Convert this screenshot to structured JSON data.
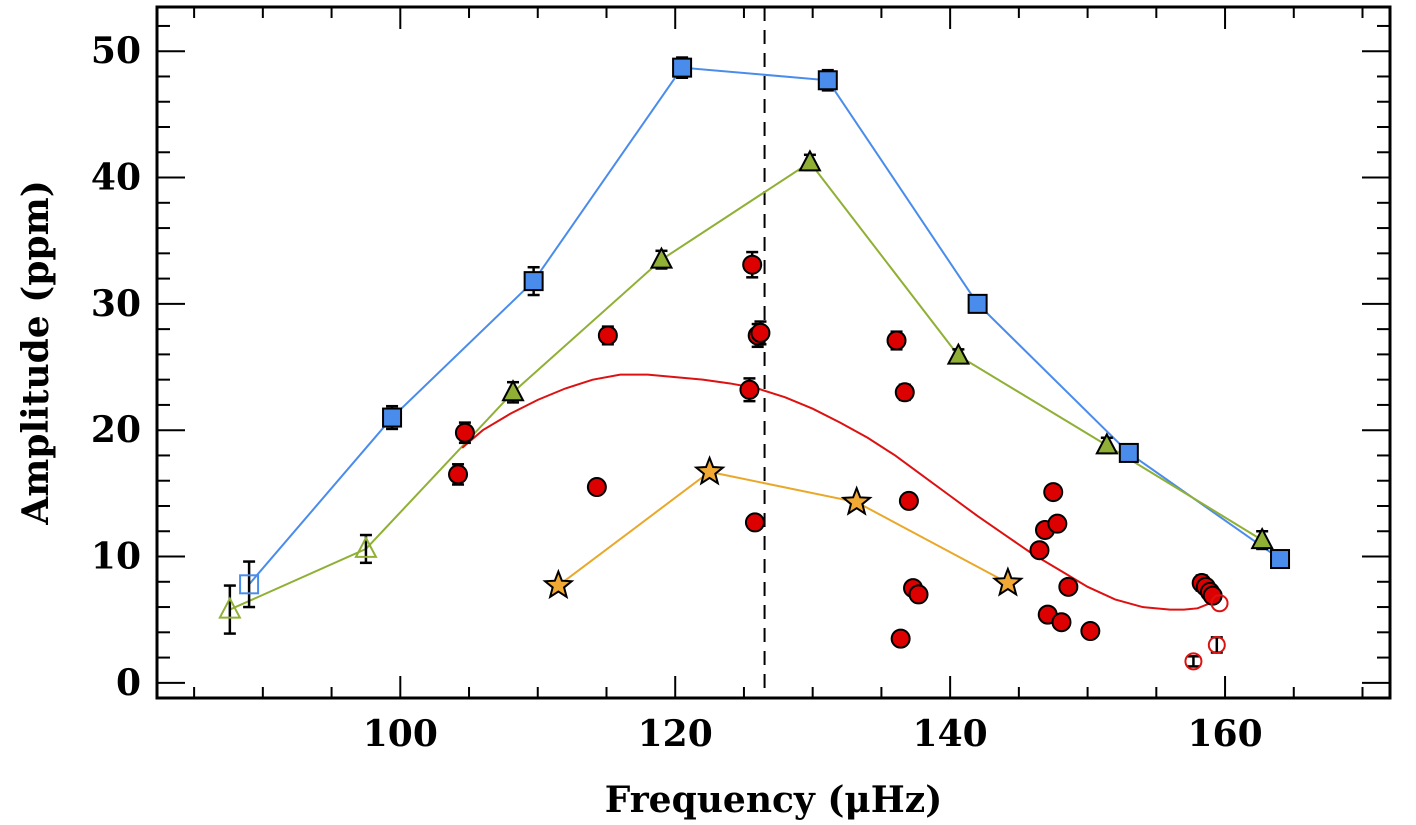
{
  "chart_data": {
    "type": "scatter",
    "title": "",
    "xlabel": "Frequency (μHz)",
    "ylabel": "Amplitude (ppm)",
    "xlim": [
      82.3,
      172
    ],
    "ylim": [
      -1.2,
      53.5
    ],
    "x_ticks": [
      100,
      120,
      140,
      160
    ],
    "y_ticks": [
      0,
      10,
      20,
      30,
      40,
      50
    ],
    "x_tick_labels": [
      "100",
      "120",
      "140",
      "160"
    ],
    "y_tick_labels": [
      "0",
      "10",
      "20",
      "30",
      "40",
      "50"
    ],
    "vline_x": 126.5,
    "colors": {
      "blue_line": "#4a8cec",
      "blue_fill": "#4a8cec",
      "green_line": "#8fb035",
      "green_fill": "#8fb035",
      "orange_line": "#eaa82a",
      "orange_fill": "#f2a933",
      "red_line": "#dd1111",
      "red_fill": "#dd0000"
    },
    "series": [
      {
        "name": "blue squares",
        "marker": "square",
        "connected": true,
        "points": [
          {
            "x": 89.0,
            "y": 7.8,
            "err": 1.8,
            "open": true
          },
          {
            "x": 99.4,
            "y": 21.0,
            "err": 0.9
          },
          {
            "x": 109.7,
            "y": 31.8,
            "err": 1.1
          },
          {
            "x": 120.5,
            "y": 48.7,
            "err": 0.8
          },
          {
            "x": 131.1,
            "y": 47.7,
            "err": 0.8
          },
          {
            "x": 142.0,
            "y": 30.0,
            "err": 0.0
          },
          {
            "x": 153.0,
            "y": 18.2,
            "err": 0.3
          },
          {
            "x": 164.0,
            "y": 9.8,
            "err": 0.6
          }
        ]
      },
      {
        "name": "green triangles",
        "marker": "triangle",
        "connected": true,
        "points": [
          {
            "x": 87.6,
            "y": 5.8,
            "err": 1.9,
            "open": true
          },
          {
            "x": 97.5,
            "y": 10.6,
            "err": 1.1,
            "open": true
          },
          {
            "x": 108.2,
            "y": 23.0,
            "err": 0.8
          },
          {
            "x": 119.0,
            "y": 33.5,
            "err": 0.7
          },
          {
            "x": 129.8,
            "y": 41.2,
            "err": 0.6
          },
          {
            "x": 140.6,
            "y": 25.9,
            "err": 0.5
          },
          {
            "x": 151.4,
            "y": 18.8,
            "err": 0.6
          },
          {
            "x": 162.7,
            "y": 11.3,
            "err": 0.7
          }
        ]
      },
      {
        "name": "orange stars",
        "marker": "star",
        "connected": true,
        "points": [
          {
            "x": 111.5,
            "y": 7.7
          },
          {
            "x": 122.5,
            "y": 16.7
          },
          {
            "x": 133.2,
            "y": 14.3
          },
          {
            "x": 144.2,
            "y": 7.9
          }
        ]
      },
      {
        "name": "red circles",
        "marker": "circle",
        "connected": false,
        "points": [
          {
            "x": 104.2,
            "y": 16.5,
            "err": 0.8
          },
          {
            "x": 104.7,
            "y": 19.8,
            "err": 0.8
          },
          {
            "x": 114.3,
            "y": 15.5
          },
          {
            "x": 115.1,
            "y": 27.5,
            "err": 0.7
          },
          {
            "x": 125.4,
            "y": 23.2,
            "err": 0.9
          },
          {
            "x": 125.6,
            "y": 33.1,
            "err": 1.0
          },
          {
            "x": 125.8,
            "y": 12.7,
            "err": 0.5
          },
          {
            "x": 126.0,
            "y": 27.5,
            "err": 0.9
          },
          {
            "x": 126.2,
            "y": 27.7,
            "err": 0.9
          },
          {
            "x": 136.1,
            "y": 27.1,
            "err": 0.7
          },
          {
            "x": 136.7,
            "y": 23.0,
            "err": 0.6
          },
          {
            "x": 137.0,
            "y": 14.4,
            "err": 0.4
          },
          {
            "x": 136.4,
            "y": 3.5
          },
          {
            "x": 137.3,
            "y": 7.5
          },
          {
            "x": 137.7,
            "y": 7.0
          },
          {
            "x": 146.5,
            "y": 10.5
          },
          {
            "x": 146.9,
            "y": 12.1,
            "err": 0.5
          },
          {
            "x": 147.1,
            "y": 5.4
          },
          {
            "x": 147.5,
            "y": 15.1,
            "err": 0.4
          },
          {
            "x": 147.8,
            "y": 12.6,
            "err": 0.4
          },
          {
            "x": 148.1,
            "y": 4.8
          },
          {
            "x": 148.6,
            "y": 7.6
          },
          {
            "x": 150.2,
            "y": 4.1
          },
          {
            "x": 158.3,
            "y": 7.9,
            "err": 0.6
          },
          {
            "x": 158.6,
            "y": 7.6,
            "err": 0.5
          },
          {
            "x": 158.9,
            "y": 7.2,
            "err": 0.5
          },
          {
            "x": 159.1,
            "y": 6.9,
            "err": 0.4
          },
          {
            "x": 159.6,
            "y": 6.3,
            "open": true
          },
          {
            "x": 157.7,
            "y": 1.7,
            "err": 0.4,
            "open": true
          },
          {
            "x": 159.4,
            "y": 3.0,
            "err": 0.6,
            "open": true
          }
        ]
      }
    ],
    "red_curve": {
      "x": [
        104.5,
        106,
        108,
        110,
        112,
        114,
        116,
        118,
        120,
        122,
        124,
        126,
        128,
        130,
        132,
        134,
        136,
        138,
        140,
        142,
        144,
        146,
        148,
        150,
        152,
        154,
        156,
        157,
        158,
        159.6
      ],
      "y": [
        18.6,
        20.0,
        21.3,
        22.4,
        23.3,
        24.0,
        24.4,
        24.4,
        24.2,
        24.0,
        23.7,
        23.3,
        22.6,
        21.7,
        20.6,
        19.4,
        18.0,
        16.4,
        14.8,
        13.2,
        11.7,
        10.2,
        8.9,
        7.6,
        6.6,
        6.0,
        5.8,
        5.8,
        5.9,
        6.6
      ]
    }
  }
}
